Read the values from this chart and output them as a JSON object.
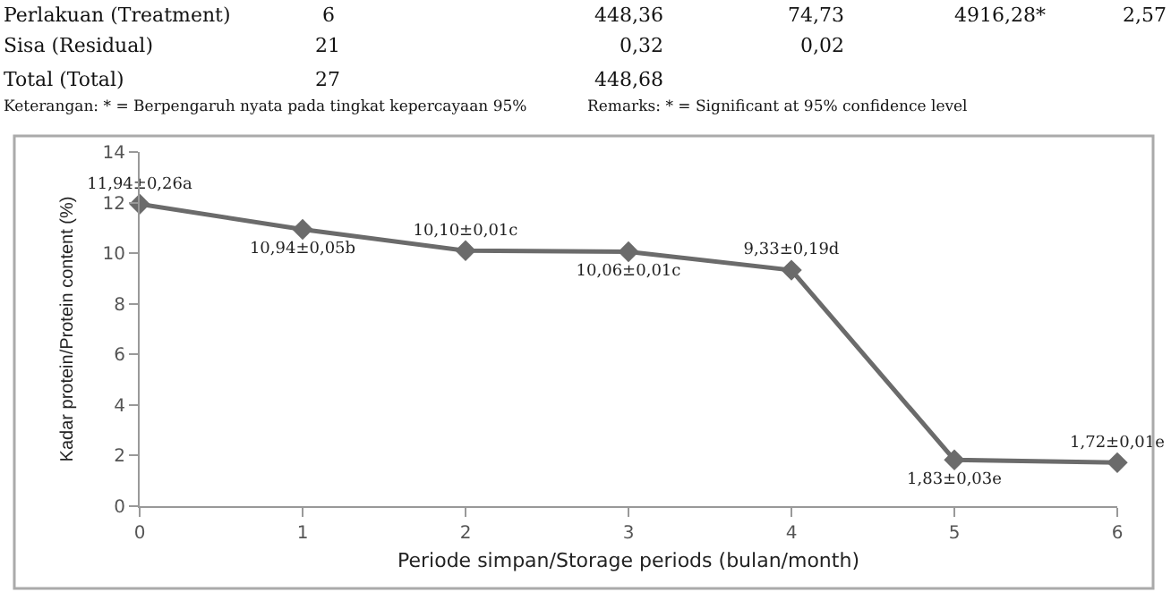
{
  "chart_data": {
    "type": "line",
    "xlabel": "Periode simpan/Storage periods (bulan/month)",
    "ylabel": "Kadar protein/Protein content (%)",
    "x": [
      0,
      1,
      2,
      3,
      4,
      5,
      6
    ],
    "series": [
      {
        "color": "#6b6b6b",
        "values": [
          11.94,
          10.94,
          10.1,
          10.06,
          9.33,
          1.83,
          1.72
        ],
        "value_labels": [
          "11,94±0,26a",
          "10,94±0,05b",
          "10,10±0,01c",
          "10,06±0,01c",
          "9,33±0,19d",
          "1,83±0,03e",
          "1,72±0,01e"
        ]
      }
    ],
    "xlim": [
      0,
      6
    ],
    "xticks": [
      0,
      1,
      2,
      3,
      4,
      5,
      6
    ],
    "ylim": [
      0,
      14
    ],
    "yticks": [
      0,
      2,
      4,
      6,
      8,
      10,
      12,
      14
    ],
    "grid": false,
    "marker": "diamond",
    "line_style": "solid",
    "annotations": [
      "Perlakuan (Treatment)",
      "6",
      "448,36",
      "74,73",
      "4916,28*",
      "2,57",
      "Sisa (Residual)",
      "21",
      "0,32",
      "0,02",
      "Total (Total)",
      "27",
      "448,68",
      "Keterangan: * = Berpengaruh nyata pada tingkat kepercayaan 95%",
      "Remarks: * = Significant at 95% confidence level"
    ]
  }
}
